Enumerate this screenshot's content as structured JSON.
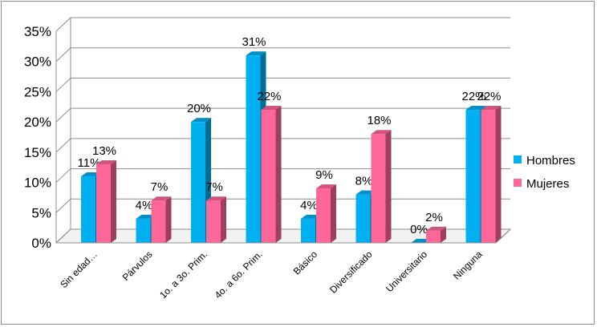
{
  "chart_data": {
    "type": "bar",
    "title": "",
    "xlabel": "",
    "ylabel": "",
    "ylim": [
      0,
      35
    ],
    "yticks": [
      "0%",
      "5%",
      "10%",
      "15%",
      "20%",
      "25%",
      "30%",
      "35%"
    ],
    "grid": true,
    "style": "3d-clustered-column",
    "legend_position": "right",
    "categories": [
      "Sin edad…",
      "Párvulos",
      "1o. a 3o. Prim.",
      "4o. a 6o. Prim.",
      "Básico",
      "Diversificado",
      "Universitario",
      "Ninguna"
    ],
    "series": [
      {
        "name": "Hombres",
        "color": "#00b0f0",
        "values": [
          11,
          4,
          20,
          31,
          4,
          8,
          0,
          22
        ],
        "labels": [
          "11%",
          "4%",
          "20%",
          "31%",
          "4%",
          "8%",
          "0%",
          "22%"
        ]
      },
      {
        "name": "Mujeres",
        "color": "#ff6699",
        "values": [
          13,
          7,
          7,
          22,
          9,
          18,
          2,
          22
        ],
        "labels": [
          "13%",
          "7%",
          "7%",
          "22%",
          "9%",
          "18%",
          "2%",
          "22%"
        ]
      }
    ]
  }
}
